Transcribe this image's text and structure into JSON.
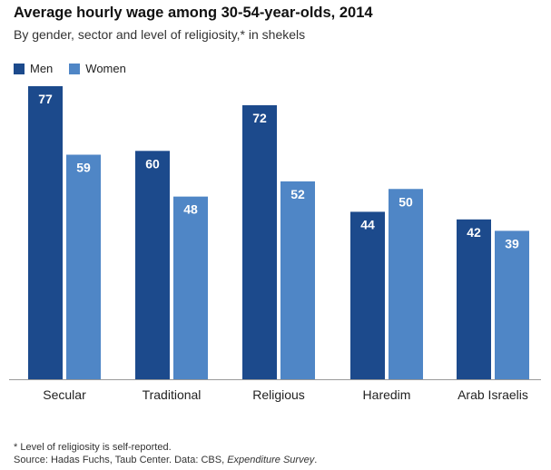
{
  "chart_data": {
    "type": "bar",
    "title": "Average hourly wage among 30-54-year-olds, 2014",
    "subtitle": "By gender, sector and level of religiosity,* in shekels",
    "categories": [
      "Secular",
      "Traditional",
      "Religious",
      "Haredim",
      "Arab  Israelis"
    ],
    "series": [
      {
        "name": "Men",
        "values": [
          77,
          60,
          72,
          44,
          42
        ],
        "color": "#1c4a8c"
      },
      {
        "name": "Women",
        "values": [
          59,
          48,
          52,
          50,
          39
        ],
        "color": "#4f86c6"
      }
    ],
    "xlabel": "",
    "ylabel": "",
    "ylim": [
      0,
      77
    ],
    "legend_position": "top-left",
    "grid": false
  },
  "footnote": "* Level of religiosity is self-reported.",
  "source": {
    "prefix": "Source: Hadas Fuchs, Taub Center. Data: CBS, ",
    "italic": "Expenditure Survey",
    "suffix": "."
  }
}
